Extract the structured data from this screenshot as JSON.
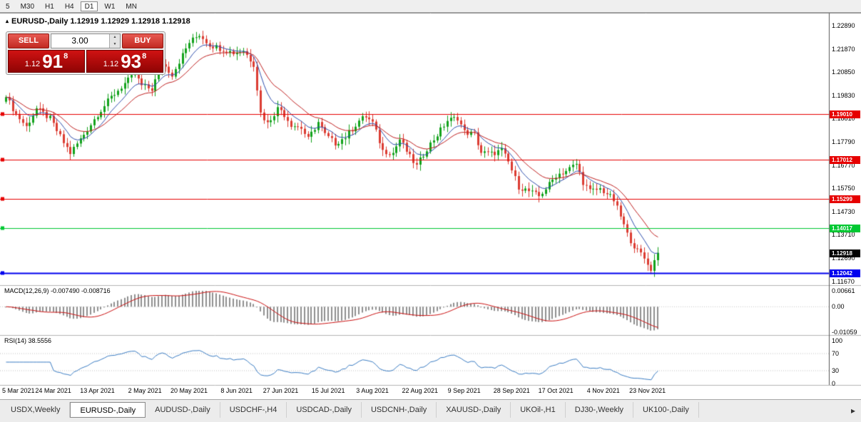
{
  "toolbar": {
    "timeframes": [
      {
        "label": "5",
        "active": false
      },
      {
        "label": "M30",
        "active": false
      },
      {
        "label": "H1",
        "active": false
      },
      {
        "label": "H4",
        "active": false
      },
      {
        "label": "D1",
        "active": true
      },
      {
        "label": "W1",
        "active": false
      },
      {
        "label": "MN",
        "active": false
      }
    ]
  },
  "ohlc_bar": {
    "collapse_icon": "▴",
    "text": "EURUSD-,Daily 1.12919 1.12929 1.12918 1.12918"
  },
  "trade_panel": {
    "sell_label": "SELL",
    "buy_label": "BUY",
    "volume": "3.00",
    "spinner_up": "▲",
    "spinner_down": "▼",
    "sell_price": {
      "prefix": "1.12",
      "big": "91",
      "sup": "8"
    },
    "buy_price": {
      "prefix": "1.12",
      "big": "93",
      "sup": "8"
    }
  },
  "chart_data": {
    "type": "candlestick",
    "title": "EURUSD-,Daily",
    "up_color": "#12a21b",
    "down_color": "#dc3c32",
    "price_axis": {
      "labels": [
        "1.22890",
        "1.21870",
        "1.20850",
        "1.19830",
        "1.18810",
        "1.17790",
        "1.16770",
        "1.15750",
        "1.14730",
        "1.13710",
        "1.12690",
        "1.11670"
      ],
      "max_price": 1.2345,
      "min_price": 1.115
    },
    "time_axis": [
      {
        "label": "5 Mar 2021",
        "day": 0
      },
      {
        "label": "24 Mar 2021",
        "day": 14
      },
      {
        "label": "13 Apr 2021",
        "day": 27
      },
      {
        "label": "2 May 2021",
        "day": 41
      },
      {
        "label": "20 May 2021",
        "day": 54
      },
      {
        "label": "8 Jun 2021",
        "day": 68
      },
      {
        "label": "27 Jun 2021",
        "day": 81
      },
      {
        "label": "15 Jul 2021",
        "day": 95
      },
      {
        "label": "3 Aug 2021",
        "day": 108
      },
      {
        "label": "22 Aug 2021",
        "day": 122
      },
      {
        "label": "9 Sep 2021",
        "day": 135
      },
      {
        "label": "28 Sep 2021",
        "day": 149
      },
      {
        "label": "17 Oct 2021",
        "day": 162
      },
      {
        "label": "4 Nov 2021",
        "day": 176
      },
      {
        "label": "23 Nov 2021",
        "day": 189
      }
    ],
    "num_candles": 193,
    "close_anchors": [
      [
        0,
        1.1975
      ],
      [
        3,
        1.19
      ],
      [
        6,
        1.1845
      ],
      [
        9,
        1.1925
      ],
      [
        13,
        1.188
      ],
      [
        17,
        1.1775
      ],
      [
        19,
        1.173
      ],
      [
        22,
        1.179
      ],
      [
        27,
        1.19
      ],
      [
        31,
        1.1975
      ],
      [
        35,
        1.2035
      ],
      [
        38,
        1.2075
      ],
      [
        40,
        1.2025
      ],
      [
        43,
        1.201
      ],
      [
        46,
        1.2125
      ],
      [
        49,
        1.2075
      ],
      [
        52,
        1.216
      ],
      [
        54,
        1.2215
      ],
      [
        57,
        1.225
      ],
      [
        60,
        1.2205
      ],
      [
        63,
        1.219
      ],
      [
        67,
        1.217
      ],
      [
        70,
        1.218
      ],
      [
        73,
        1.212
      ],
      [
        75,
        1.1905
      ],
      [
        77,
        1.186
      ],
      [
        80,
        1.1925
      ],
      [
        81,
        1.192
      ],
      [
        84,
        1.1855
      ],
      [
        87,
        1.184
      ],
      [
        89,
        1.179
      ],
      [
        92,
        1.1865
      ],
      [
        94,
        1.181
      ],
      [
        97,
        1.1772
      ],
      [
        100,
        1.18
      ],
      [
        104,
        1.1872
      ],
      [
        106,
        1.189
      ],
      [
        108,
        1.1862
      ],
      [
        111,
        1.174
      ],
      [
        114,
        1.173
      ],
      [
        116,
        1.179
      ],
      [
        119,
        1.1712
      ],
      [
        121,
        1.1672
      ],
      [
        124,
        1.175
      ],
      [
        127,
        1.181
      ],
      [
        130,
        1.1872
      ],
      [
        133,
        1.1885
      ],
      [
        135,
        1.1822
      ],
      [
        138,
        1.1812
      ],
      [
        140,
        1.1732
      ],
      [
        143,
        1.1726
      ],
      [
        146,
        1.1742
      ],
      [
        148,
        1.169
      ],
      [
        151,
        1.1582
      ],
      [
        154,
        1.1562
      ],
      [
        157,
        1.154
      ],
      [
        160,
        1.1592
      ],
      [
        162,
        1.1632
      ],
      [
        165,
        1.1652
      ],
      [
        168,
        1.1682
      ],
      [
        170,
        1.1602
      ],
      [
        172,
        1.1562
      ],
      [
        175,
        1.1572
      ],
      [
        177,
        1.1552
      ],
      [
        179,
        1.1522
      ],
      [
        181,
        1.1452
      ],
      [
        183,
        1.1372
      ],
      [
        185,
        1.1322
      ],
      [
        187,
        1.1292
      ],
      [
        189,
        1.1242
      ],
      [
        190,
        1.1212
      ],
      [
        191,
        1.1262
      ],
      [
        192,
        1.12918
      ]
    ],
    "moving_averages": [
      {
        "period": 8,
        "color": "#2f4fae"
      },
      {
        "period": 17,
        "color": "#c02020"
      }
    ],
    "hlines": [
      {
        "price": 1.1901,
        "label": "1.19010",
        "color": "#e60000",
        "width": 1
      },
      {
        "price": 1.17012,
        "label": "1.17012",
        "color": "#e60000",
        "width": 1
      },
      {
        "price": 1.15299,
        "label": "1.15299",
        "color": "#e60000",
        "width": 1
      },
      {
        "price": 1.14017,
        "label": "1.14017",
        "color": "#00c832",
        "width": 1
      },
      {
        "price": 1.12042,
        "label": "1.12042",
        "color": "#0000ee",
        "width": 2
      }
    ],
    "bid_marker": {
      "price": 1.12918,
      "label": "1.12918",
      "bg": "#000000"
    },
    "macd_panel": {
      "title": "MACD(12,26,9) -0.007490 -0.008716",
      "params": [
        12,
        26,
        9
      ],
      "values_text": [
        "-0.007490",
        "-0.008716"
      ],
      "axis": [
        {
          "value": 0.00661,
          "label": "0.00661"
        },
        {
          "value": 0,
          "label": "0.00"
        },
        {
          "value": -0.01059,
          "label": "-0.01059"
        }
      ],
      "range": [
        -0.01059,
        0.00661
      ],
      "histogram_color": "#8f8f8f",
      "signal_color": "#cc1111"
    },
    "rsi_panel": {
      "title": "RSI(14) 38.5556",
      "period": 14,
      "value_text": "38.5556",
      "axis": [
        {
          "value": 100,
          "label": "100"
        },
        {
          "value": 70,
          "label": "70"
        },
        {
          "value": 30,
          "label": "30"
        },
        {
          "value": 0,
          "label": "0"
        }
      ],
      "range": [
        0,
        100
      ],
      "levels": [
        30,
        70
      ],
      "line_color": "#3b7dc4"
    }
  },
  "tabs": {
    "items": [
      {
        "label": "USDX,Weekly",
        "active": false
      },
      {
        "label": "EURUSD-,Daily",
        "active": true
      },
      {
        "label": "AUDUSD-,Daily",
        "active": false
      },
      {
        "label": "USDCHF-,H4",
        "active": false
      },
      {
        "label": "USDCAD-,Daily",
        "active": false
      },
      {
        "label": "USDCNH-,Daily",
        "active": false
      },
      {
        "label": "XAUUSD-,Daily",
        "active": false
      },
      {
        "label": "UKOil-,H1",
        "active": false
      },
      {
        "label": "DJ30-,Weekly",
        "active": false
      },
      {
        "label": "UK100-,Daily",
        "active": false
      }
    ],
    "scroll_right_icon": "▸"
  }
}
